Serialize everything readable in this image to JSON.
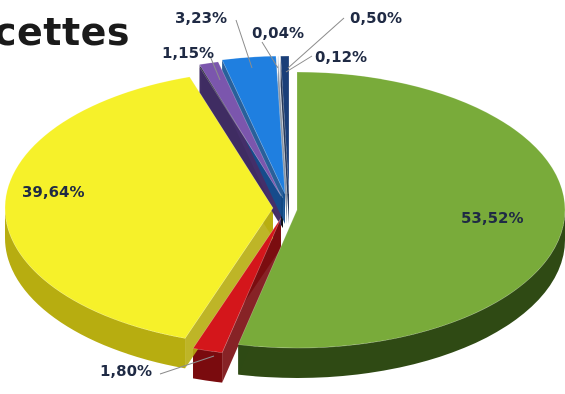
{
  "chart_data": {
    "type": "pie",
    "title": "cettes",
    "slices": [
      {
        "label": "53,52%",
        "value": 53.52,
        "color": "#79ab3a",
        "side": "#2f4a14"
      },
      {
        "label": "1,80%",
        "value": 1.8,
        "color": "#d4161b",
        "side": "#7a0b0e"
      },
      {
        "label": "39,64%",
        "value": 39.64,
        "color": "#f6f12a",
        "side": "#b7ad10"
      },
      {
        "label": "0,12%",
        "value": 0.12,
        "color": "#1d1d2b",
        "side": "#0d0d14"
      },
      {
        "label": "1,15%",
        "value": 1.15,
        "color": "#7b56ad",
        "side": "#45306a"
      },
      {
        "label": "3,23%",
        "value": 3.23,
        "color": "#1f7fe0",
        "side": "#124f8f"
      },
      {
        "label": "0,04%",
        "value": 0.04,
        "color": "#cfd7e3",
        "side": "#8893a3"
      },
      {
        "label": "0,50%",
        "value": 0.5,
        "color": "#1a3f78",
        "side": "#0f2548"
      }
    ]
  }
}
